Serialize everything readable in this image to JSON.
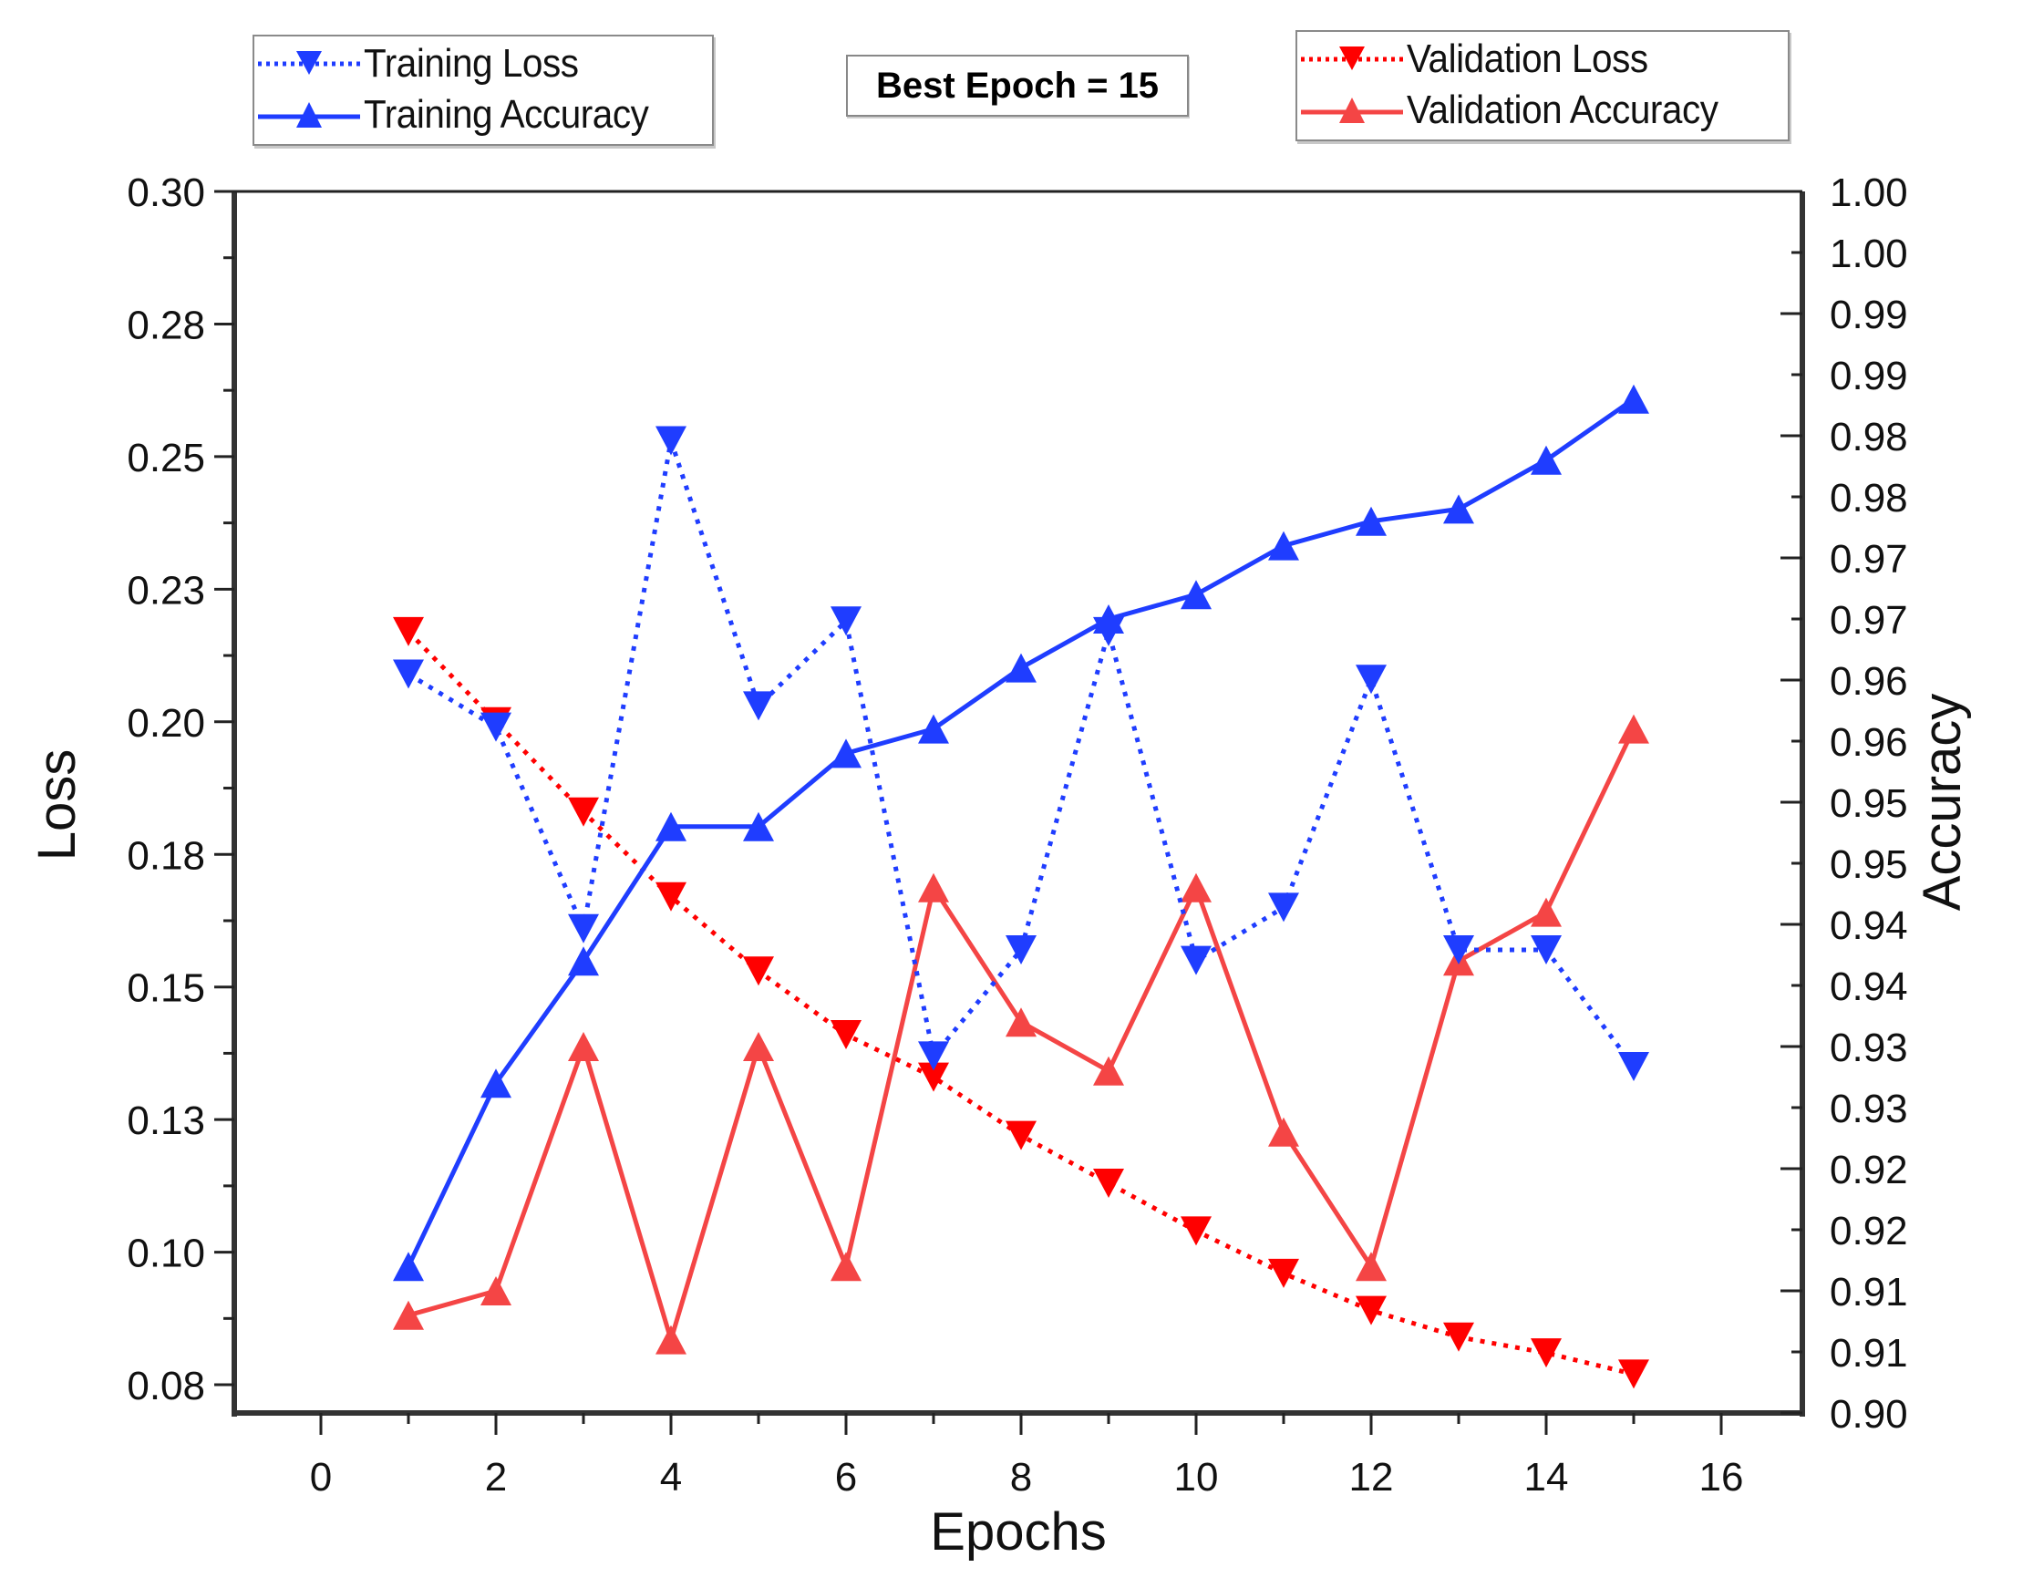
{
  "legend_left": {
    "items": [
      {
        "label": "Training Loss",
        "color": "#1f3dff",
        "line": "dotted",
        "marker": "triangle-down"
      },
      {
        "label": "Training Accuracy",
        "color": "#1f3dff",
        "line": "solid",
        "marker": "triangle-up"
      }
    ]
  },
  "legend_right": {
    "items": [
      {
        "label": "Validation Loss",
        "color": "#ff0000",
        "line": "dotted",
        "marker": "triangle-down"
      },
      {
        "label": "Validation Accuracy",
        "color": "#f44545",
        "line": "solid",
        "marker": "triangle-up"
      }
    ]
  },
  "annotation": {
    "best_epoch": "Best Epoch = 15"
  },
  "axes": {
    "xlabel": "Epochs",
    "ylabel_left": "Loss",
    "ylabel_right": "Accuracy",
    "x_ticks": [
      "0",
      "2",
      "4",
      "6",
      "8",
      "10",
      "12",
      "14",
      "16"
    ],
    "y_left_ticks": [
      "0.30",
      "0.28",
      "0.25",
      "0.23",
      "0.20",
      "0.18",
      "0.15",
      "0.13",
      "0.10",
      "0.08"
    ],
    "y_right_ticks": [
      "1.00",
      "1.00",
      "0.99",
      "0.99",
      "0.98",
      "0.98",
      "0.97",
      "0.97",
      "0.96",
      "0.96",
      "0.95",
      "0.95",
      "0.94",
      "0.94",
      "0.93",
      "0.93",
      "0.92",
      "0.92",
      "0.91",
      "0.91",
      "0.90"
    ]
  },
  "chart_data": {
    "type": "line",
    "title": "",
    "annotation": "Best Epoch = 15",
    "xlabel": "Epochs",
    "ylabel": "Loss",
    "ylabel_right": "Accuracy",
    "xlim": [
      -1,
      17
    ],
    "ylim": [
      0.07,
      0.3
    ],
    "ylim_right": [
      0.9,
      1.0
    ],
    "grid": false,
    "legend_position": "top (two boxes: left and right)",
    "x": [
      1,
      2,
      3,
      4,
      5,
      6,
      7,
      8,
      9,
      10,
      11,
      12,
      13,
      14,
      15
    ],
    "series": [
      {
        "name": "Training Loss",
        "axis": "left",
        "color": "#1f3dff",
        "style": "dotted",
        "marker": "triangle-down",
        "values": [
          0.209,
          0.199,
          0.161,
          0.253,
          0.203,
          0.219,
          0.137,
          0.157,
          0.217,
          0.155,
          0.165,
          0.208,
          0.157,
          0.157,
          0.135
        ]
      },
      {
        "name": "Training Accuracy",
        "axis": "right",
        "color": "#1f3dff",
        "style": "solid",
        "marker": "triangle-up",
        "values": [
          0.912,
          0.927,
          0.937,
          0.948,
          0.948,
          0.954,
          0.956,
          0.961,
          0.965,
          0.967,
          0.971,
          0.973,
          0.974,
          0.978,
          0.983
        ]
      },
      {
        "name": "Validation Loss",
        "axis": "left",
        "color": "#ff0000",
        "style": "dotted",
        "marker": "triangle-down",
        "values": [
          0.217,
          0.2,
          0.183,
          0.167,
          0.153,
          0.141,
          0.133,
          0.122,
          0.113,
          0.104,
          0.096,
          0.089,
          0.084,
          0.081,
          0.077
        ]
      },
      {
        "name": "Validation Accuracy",
        "axis": "right",
        "color": "#f44545",
        "style": "solid",
        "marker": "triangle-up",
        "values": [
          0.908,
          0.91,
          0.93,
          0.906,
          0.93,
          0.912,
          0.943,
          0.932,
          0.928,
          0.943,
          0.923,
          0.912,
          0.937,
          0.941,
          0.956
        ]
      }
    ]
  }
}
